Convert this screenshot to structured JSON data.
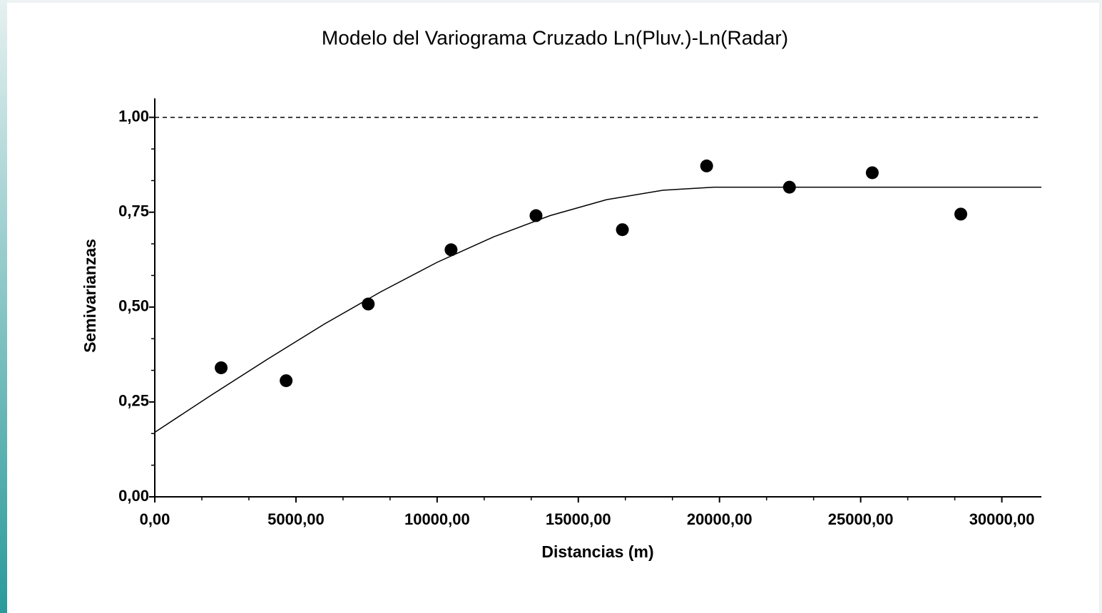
{
  "chart_data": {
    "type": "scatter",
    "title": "Modelo del Variograma Cruzado Ln(Pluv.)-Ln(Radar)",
    "xlabel": "Distancias (m)",
    "ylabel": "Semivarianzas",
    "series": [
      {
        "type": "scatter",
        "color": "#000000",
        "x": [
          2351,
          4652,
          7560,
          10493,
          13502,
          16561,
          19545,
          22478,
          25411,
          28546
        ],
        "values": [
          0.34,
          0.306,
          0.508,
          0.651,
          0.741,
          0.704,
          0.872,
          0.816,
          0.854,
          0.745
        ]
      },
      {
        "type": "line",
        "color": "#000000",
        "x": [
          0,
          2000,
          4000,
          6000,
          8000,
          10000,
          12000,
          14000,
          16000,
          18000,
          19800,
          31400
        ],
        "values": [
          0.17,
          0.268,
          0.363,
          0.455,
          0.54,
          0.618,
          0.685,
          0.741,
          0.783,
          0.808,
          0.816,
          0.816
        ]
      }
    ],
    "reference_line": 1.0,
    "xlim": [
      0,
      31400
    ],
    "ylim": [
      0,
      1.05
    ],
    "xticks": [
      {
        "value": 0,
        "label": "0,00"
      },
      {
        "value": 5000,
        "label": "5000,00"
      },
      {
        "value": 10000,
        "label": "10000,00"
      },
      {
        "value": 15000,
        "label": "15000,00"
      },
      {
        "value": 20000,
        "label": "20000,00"
      },
      {
        "value": 25000,
        "label": "25000,00"
      },
      {
        "value": 30000,
        "label": "30000,00"
      }
    ],
    "yticks": [
      {
        "value": 0,
        "label": "0,00"
      },
      {
        "value": 0.25,
        "label": "0,25"
      },
      {
        "value": 0.5,
        "label": "0,50"
      },
      {
        "value": 0.75,
        "label": "0,75"
      },
      {
        "value": 1.0,
        "label": "1,00"
      }
    ],
    "xminorticks": [
      1667,
      3333,
      6667,
      8333,
      11667,
      13333,
      16667,
      18333,
      21667,
      23333,
      26667,
      28333
    ],
    "yminorticks": [
      0.0833,
      0.1667,
      0.3333,
      0.4167,
      0.5833,
      0.6667,
      0.8333,
      0.9167
    ]
  }
}
